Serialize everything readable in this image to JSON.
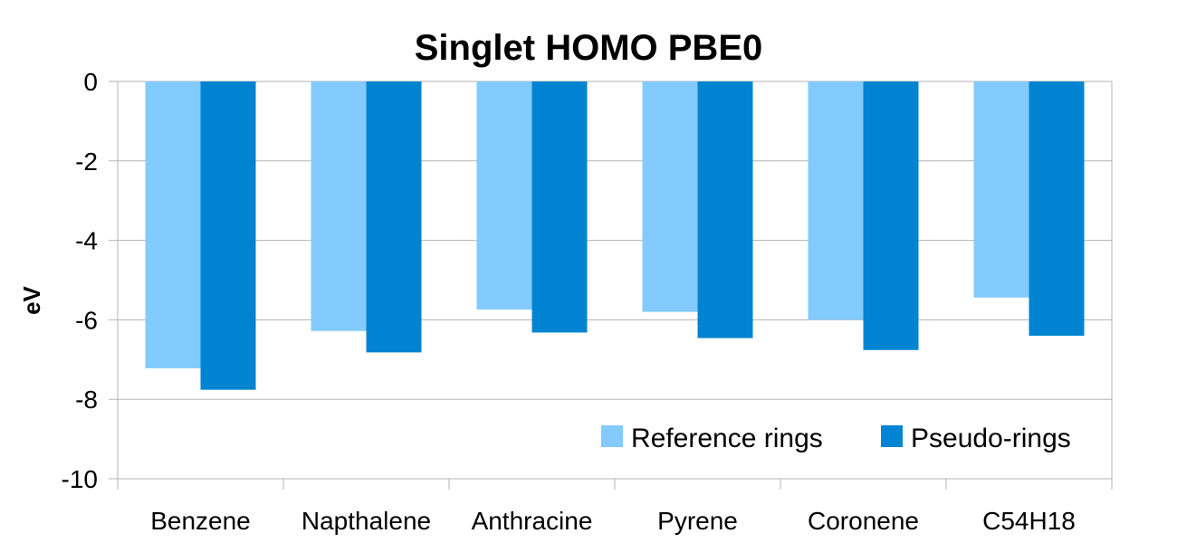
{
  "chart_data": {
    "type": "bar",
    "title": "Singlet HOMO PBE0",
    "ylabel": "eV",
    "xlabel": "",
    "ylim": [
      -10,
      0
    ],
    "yticks": [
      0,
      -2,
      -4,
      -6,
      -8,
      -10
    ],
    "grid": true,
    "legend_position": "bottom-right",
    "categories": [
      "Benzene",
      "Napthalene",
      "Anthracine",
      "Pyrene",
      "Coronene",
      "C54H18"
    ],
    "series": [
      {
        "name": "Reference rings",
        "color": "#83caff",
        "values": [
          -7.22,
          -6.28,
          -5.74,
          -5.8,
          -6.0,
          -5.44
        ]
      },
      {
        "name": "Pseudo-rings",
        "color": "#0084d1",
        "values": [
          -7.76,
          -6.82,
          -6.32,
          -6.46,
          -6.76,
          -6.4
        ]
      }
    ]
  }
}
